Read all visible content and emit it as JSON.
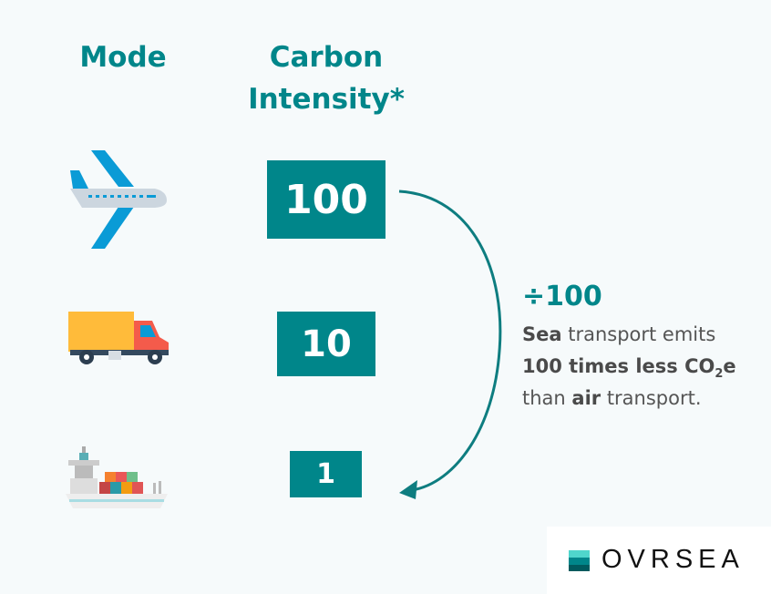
{
  "headers": {
    "mode": "Mode",
    "carbon_line1": "Carbon",
    "carbon_line2": "Intensity*"
  },
  "rows": [
    {
      "mode": "plane",
      "icon": "airplane-icon",
      "value": "100"
    },
    {
      "mode": "truck",
      "icon": "truck-icon",
      "value": "10"
    },
    {
      "mode": "ship",
      "icon": "container-ship-icon",
      "value": "1"
    }
  ],
  "callout": {
    "ratio": "÷100",
    "line1_bold": "Sea",
    "line1_rest": " transport emits",
    "line2_bold": "100 times less CO",
    "line2_sub": "2",
    "line2_end": "e",
    "line3_start": "than ",
    "line3_bold": "air",
    "line3_rest": " transport."
  },
  "logo": {
    "text": "OVRSEA"
  },
  "colors": {
    "accent": "#00868a",
    "text": "#555555",
    "background": "#f6fafb"
  }
}
